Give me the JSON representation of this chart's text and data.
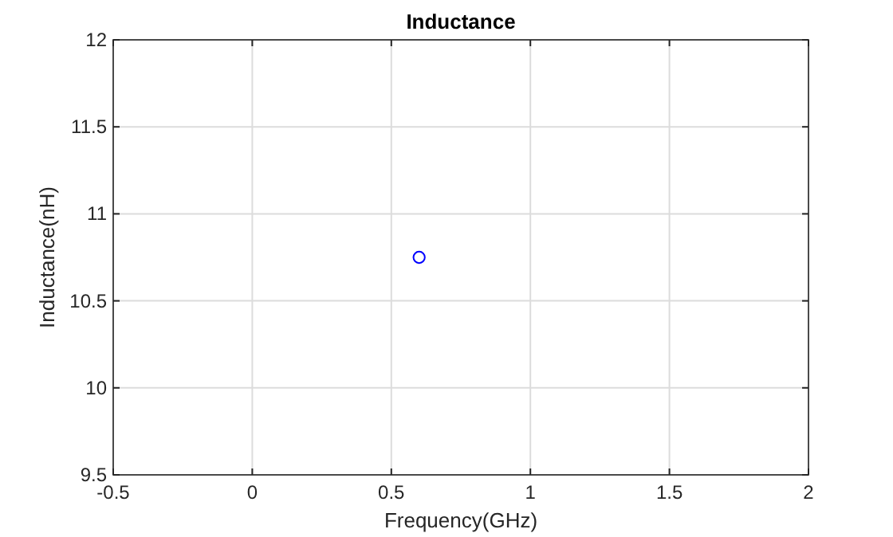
{
  "chart_data": {
    "type": "scatter",
    "title": "Inductance",
    "xlabel": "Frequency(GHz)",
    "ylabel": "Inductance(nH)",
    "x": [
      0.6
    ],
    "series": [
      {
        "color": "#0000ff",
        "values": [
          10.75
        ]
      }
    ],
    "xlim": [
      -0.5,
      2
    ],
    "xticks": [
      -0.5,
      0,
      0.5,
      1,
      1.5,
      2
    ],
    "ylim": [
      9.5,
      12
    ],
    "yticks": [
      9.5,
      10,
      10.5,
      11,
      11.5,
      12
    ],
    "grid": true,
    "marker": "circle"
  }
}
